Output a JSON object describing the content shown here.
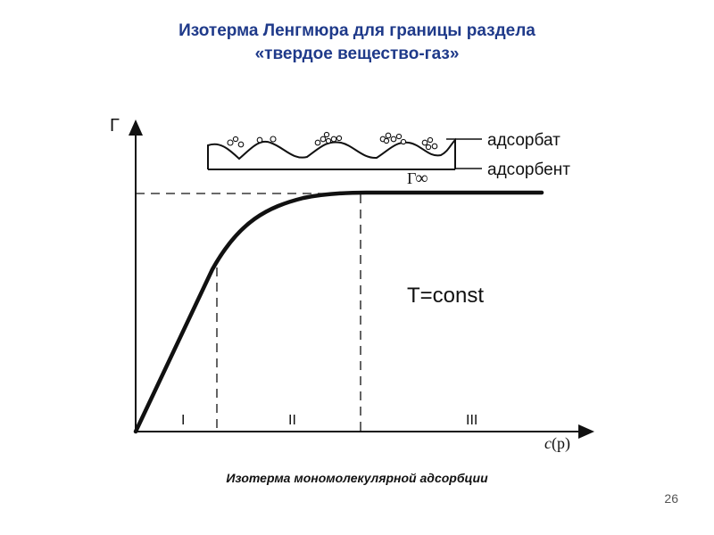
{
  "slide": {
    "title_line1": "Изотерма Ленгмюра для границы раздела",
    "title_line2": "«твердое вещество-газ»",
    "caption": "Изотерма мономолекулярной адсорбции",
    "page_number": "26"
  },
  "diagram": {
    "y_axis_label": "Г",
    "x_axis_label_main": "c",
    "x_axis_label_paren": "(p)",
    "gamma_inf_symbol": "Г",
    "gamma_inf_subscript": "∞",
    "condition": "T=const",
    "regions": [
      "I",
      "II",
      "III"
    ],
    "inset_labels": {
      "adsorbate": "адсорбат",
      "adsorbent": "адсорбент"
    }
  }
}
